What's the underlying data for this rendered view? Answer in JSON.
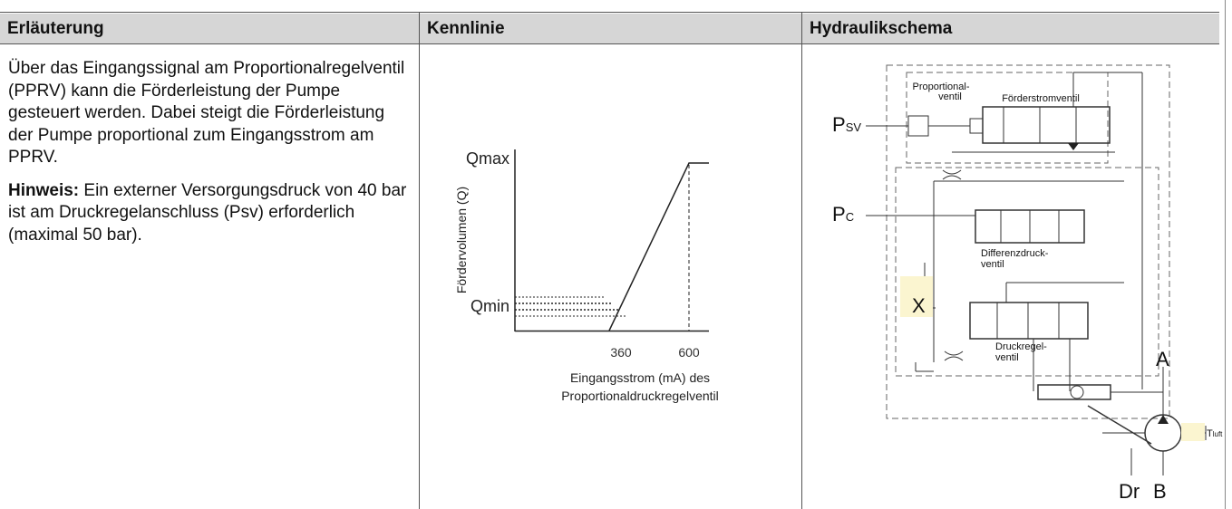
{
  "table": {
    "headers": [
      "Erläuterung",
      "Kennlinie",
      "Hydraulikschema"
    ],
    "explanation": {
      "paragraph": "Über das Eingangssignal am Proportionalregelventil (PPRV) kann die Förderleistung der Pumpe gesteuert werden. Dabei steigt die Förderleistung der Pumpe proportional zum Eingangsstrom am PPRV.",
      "note_label": "Hinweis:",
      "note": "Ein externer Versorgungsdruck von 40 bar ist am Druckregelanschluss (Psv) erforderlich (maximal 50 bar)."
    },
    "kennlinie": {
      "y_label": "Fördervolumen (Q)",
      "y_ticks": [
        "Qmin",
        "Qmax"
      ],
      "x_ticks": [
        "360",
        "600"
      ],
      "x_label": [
        "Eingangsstrom (mA) des",
        "Proportionaldruckregelventil"
      ]
    },
    "schema": {
      "valve1": [
        "Proportional-",
        "ventil"
      ],
      "valve2": "Förderstromventil",
      "valve3": [
        "Differenzdruck-",
        "ventil"
      ],
      "valve4": [
        "Druckregel-",
        "ventil"
      ],
      "psv": [
        "P",
        "SV"
      ],
      "pc": [
        "P",
        "C"
      ],
      "x": "X",
      "a": "A",
      "tluft": [
        "T",
        "luft"
      ],
      "dr": "Dr",
      "b": "B"
    }
  }
}
